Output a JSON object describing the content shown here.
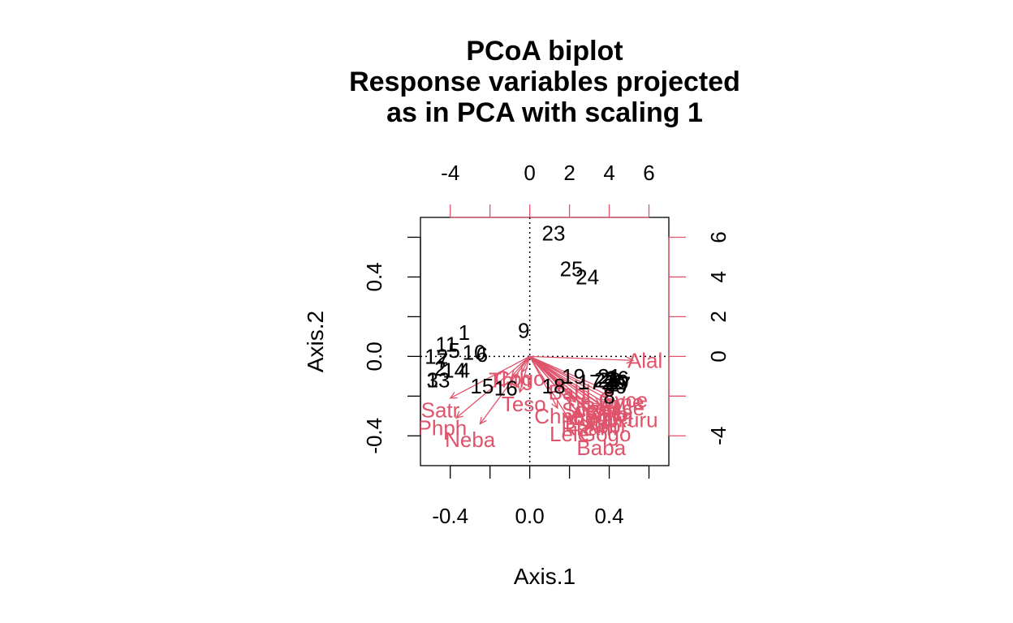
{
  "chart_data": {
    "type": "scatter",
    "title_lines": [
      "PCoA biplot",
      "Response variables projected",
      "as in PCA with scaling 1"
    ],
    "xlabel": "Axis.1",
    "ylabel": "Axis.2",
    "xlim": [
      -0.55,
      0.7
    ],
    "ylim": [
      -0.55,
      0.7
    ],
    "x_ticks": [
      -0.4,
      0.0,
      0.4
    ],
    "x_tick_labels": [
      "-0.4",
      "0.0",
      "0.4"
    ],
    "y_ticks": [
      -0.4,
      0.0,
      0.4
    ],
    "y_tick_labels": [
      "-0.4",
      "0.0",
      "0.4"
    ],
    "top_axis": {
      "lim": [
        -5.5,
        7.0
      ],
      "ticks": [
        -4,
        -2,
        0,
        2,
        4,
        6
      ],
      "tick_labels": [
        "-4",
        "0",
        "2",
        "4",
        "6"
      ],
      "color": "#DF536B"
    },
    "right_axis": {
      "lim": [
        -5.5,
        7.0
      ],
      "ticks": [
        -4,
        -2,
        0,
        2,
        4,
        6
      ],
      "tick_labels": [
        "-4",
        "0",
        "2",
        "4",
        "6"
      ],
      "color": "#DF536B"
    },
    "grid": false,
    "zero_lines": "dotted",
    "site_color": "#000000",
    "species_color": "#DF536B",
    "sites": [
      {
        "label": "1",
        "x": -0.33,
        "y": 0.12
      },
      {
        "label": "2",
        "x": -0.45,
        "y": -0.06
      },
      {
        "label": "3",
        "x": -0.49,
        "y": -0.12
      },
      {
        "label": "4",
        "x": -0.33,
        "y": -0.07
      },
      {
        "label": "5",
        "x": -0.38,
        "y": 0.03
      },
      {
        "label": "6",
        "x": -0.24,
        "y": 0.01
      },
      {
        "label": "7",
        "x": -0.44,
        "y": -0.02
      },
      {
        "label": "8",
        "x": 0.4,
        "y": -0.2
      },
      {
        "label": "9",
        "x": -0.03,
        "y": 0.13
      },
      {
        "label": "10",
        "x": -0.28,
        "y": 0.02
      },
      {
        "label": "11",
        "x": -0.42,
        "y": 0.06
      },
      {
        "label": "12",
        "x": -0.47,
        "y": 0.0
      },
      {
        "label": "13",
        "x": -0.46,
        "y": -0.12
      },
      {
        "label": "14",
        "x": -0.38,
        "y": -0.07
      },
      {
        "label": "15",
        "x": -0.24,
        "y": -0.15
      },
      {
        "label": "16",
        "x": -0.12,
        "y": -0.16
      },
      {
        "label": "17",
        "x": 0.3,
        "y": -0.13
      },
      {
        "label": "18",
        "x": 0.12,
        "y": -0.15
      },
      {
        "label": "19",
        "x": 0.22,
        "y": -0.1
      },
      {
        "label": "20",
        "x": 0.42,
        "y": -0.13
      },
      {
        "label": "21",
        "x": 0.4,
        "y": -0.1
      },
      {
        "label": "22",
        "x": 0.38,
        "y": -0.12
      },
      {
        "label": "23",
        "x": 0.12,
        "y": 0.62
      },
      {
        "label": "24",
        "x": 0.29,
        "y": 0.4
      },
      {
        "label": "25",
        "x": 0.21,
        "y": 0.44
      },
      {
        "label": "26",
        "x": 0.44,
        "y": -0.11
      },
      {
        "label": "27",
        "x": 0.45,
        "y": -0.14
      },
      {
        "label": "28",
        "x": 0.4,
        "y": -0.12
      },
      {
        "label": "29",
        "x": 0.44,
        "y": -0.13
      },
      {
        "label": "30",
        "x": 0.43,
        "y": -0.15
      }
    ],
    "species": [
      {
        "label": "Alal",
        "x": 0.58,
        "y": -0.02
      },
      {
        "label": "Satr",
        "x": -0.45,
        "y": -0.27
      },
      {
        "label": "Phph",
        "x": -0.44,
        "y": -0.36
      },
      {
        "label": "Neba",
        "x": -0.3,
        "y": -0.42
      },
      {
        "label": "Teso",
        "x": -0.03,
        "y": -0.24
      },
      {
        "label": "Thth",
        "x": -0.1,
        "y": -0.12
      },
      {
        "label": "Cogo",
        "x": -0.05,
        "y": -0.11
      },
      {
        "label": "Lele",
        "x": 0.2,
        "y": -0.39
      },
      {
        "label": "Baba",
        "x": 0.36,
        "y": -0.46
      },
      {
        "label": "Gogo",
        "x": 0.38,
        "y": -0.39
      },
      {
        "label": "Ruru",
        "x": 0.53,
        "y": -0.32
      },
      {
        "label": "Albi",
        "x": 0.38,
        "y": -0.32
      },
      {
        "label": "Chna",
        "x": 0.15,
        "y": -0.3
      },
      {
        "label": "Pefl",
        "x": 0.35,
        "y": -0.26
      },
      {
        "label": "Eslu",
        "x": 0.28,
        "y": -0.34
      },
      {
        "label": "Anan",
        "x": 0.33,
        "y": -0.29
      },
      {
        "label": "Titi",
        "x": 0.24,
        "y": -0.24
      },
      {
        "label": "Babl",
        "x": 0.2,
        "y": -0.18
      },
      {
        "label": "Icme",
        "x": 0.46,
        "y": -0.23
      },
      {
        "label": "Acce",
        "x": 0.46,
        "y": -0.26
      },
      {
        "label": "Blbj",
        "x": 0.43,
        "y": -0.29
      },
      {
        "label": "Rham",
        "x": 0.3,
        "y": -0.36
      },
      {
        "label": "Legi",
        "x": 0.32,
        "y": -0.31
      },
      {
        "label": "Scer",
        "x": 0.27,
        "y": -0.27
      },
      {
        "label": "Cyca",
        "x": 0.4,
        "y": -0.28
      },
      {
        "label": "Gyce",
        "x": 0.47,
        "y": -0.22
      },
      {
        "label": "Abbr",
        "x": 0.38,
        "y": -0.35
      }
    ],
    "species_arrows": [
      {
        "x": 0.52,
        "y": -0.02
      },
      {
        "x": -0.4,
        "y": -0.21
      },
      {
        "x": -0.37,
        "y": -0.31
      },
      {
        "x": -0.25,
        "y": -0.34
      },
      {
        "x": -0.05,
        "y": -0.18
      },
      {
        "x": -0.09,
        "y": -0.1
      },
      {
        "x": -0.04,
        "y": -0.08
      },
      {
        "x": 0.2,
        "y": -0.32
      },
      {
        "x": 0.31,
        "y": -0.36
      },
      {
        "x": 0.34,
        "y": -0.32
      },
      {
        "x": 0.45,
        "y": -0.28
      },
      {
        "x": 0.33,
        "y": -0.27
      },
      {
        "x": 0.14,
        "y": -0.26
      },
      {
        "x": 0.3,
        "y": -0.22
      },
      {
        "x": 0.25,
        "y": -0.29
      },
      {
        "x": 0.29,
        "y": -0.24
      },
      {
        "x": 0.21,
        "y": -0.2
      },
      {
        "x": 0.17,
        "y": -0.15
      },
      {
        "x": 0.4,
        "y": -0.2
      },
      {
        "x": 0.4,
        "y": -0.22
      },
      {
        "x": 0.37,
        "y": -0.25
      },
      {
        "x": 0.26,
        "y": -0.3
      },
      {
        "x": 0.28,
        "y": -0.26
      },
      {
        "x": 0.23,
        "y": -0.23
      },
      {
        "x": 0.35,
        "y": -0.24
      },
      {
        "x": 0.41,
        "y": -0.18
      },
      {
        "x": 0.33,
        "y": -0.3
      }
    ]
  }
}
